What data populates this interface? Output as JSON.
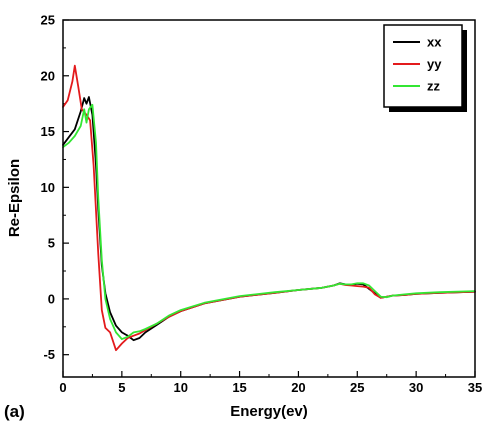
{
  "chart_data": {
    "type": "line",
    "panel_label": "(a)",
    "xlabel": "Energy(ev)",
    "ylabel": "Re-Epsilon",
    "xlim": [
      0,
      35
    ],
    "ylim": [
      -7,
      25
    ],
    "xticks": [
      0,
      5,
      10,
      15,
      20,
      25,
      30,
      35
    ],
    "yticks": [
      -5,
      0,
      5,
      10,
      15,
      20,
      25
    ],
    "legend_position": "top-right",
    "series": [
      {
        "name": "xx",
        "color": "#000000",
        "x": [
          0,
          0.5,
          1.0,
          1.5,
          1.8,
          2.0,
          2.2,
          2.5,
          2.8,
          3.0,
          3.3,
          3.6,
          4.0,
          4.5,
          5.0,
          5.5,
          6.0,
          6.5,
          7.0,
          8.0,
          9.0,
          10.0,
          12.0,
          15.0,
          18.0,
          20.0,
          22.0,
          23.0,
          23.5,
          24.0,
          24.5,
          25.0,
          25.5,
          26.0,
          26.5,
          27.0,
          27.5,
          28.0,
          29.0,
          30.0,
          32.0,
          35.0
        ],
        "y": [
          13.8,
          14.5,
          15.2,
          16.8,
          18.0,
          17.5,
          18.1,
          16.5,
          12.0,
          8.0,
          3.0,
          0.5,
          -1.2,
          -2.4,
          -3.0,
          -3.3,
          -3.7,
          -3.5,
          -3.0,
          -2.3,
          -1.6,
          -1.1,
          -0.4,
          0.2,
          0.55,
          0.8,
          1.0,
          1.2,
          1.4,
          1.3,
          1.25,
          1.35,
          1.3,
          0.9,
          0.5,
          0.1,
          0.2,
          0.3,
          0.35,
          0.45,
          0.55,
          0.65
        ]
      },
      {
        "name": "yy",
        "color": "#e31a1c",
        "x": [
          0,
          0.4,
          0.8,
          1.0,
          1.3,
          1.6,
          2.0,
          2.3,
          2.6,
          3.0,
          3.3,
          3.6,
          4.0,
          4.5,
          5.0,
          5.5,
          6.0,
          6.5,
          7.0,
          8.0,
          9.0,
          10.0,
          12.0,
          15.0,
          18.0,
          20.0,
          22.0,
          23.0,
          23.5,
          24.0,
          24.5,
          25.0,
          25.5,
          26.0,
          26.5,
          27.0,
          27.5,
          28.0,
          29.0,
          30.0,
          32.0,
          35.0
        ],
        "y": [
          17.2,
          17.8,
          19.5,
          20.9,
          19.0,
          17.0,
          16.5,
          16.0,
          12.0,
          4.0,
          -1.0,
          -2.6,
          -3.0,
          -4.6,
          -4.0,
          -3.5,
          -3.3,
          -3.1,
          -2.8,
          -2.2,
          -1.6,
          -1.1,
          -0.4,
          0.2,
          0.55,
          0.8,
          1.0,
          1.2,
          1.35,
          1.25,
          1.2,
          1.15,
          1.1,
          1.0,
          0.4,
          0.1,
          0.2,
          0.3,
          0.35,
          0.45,
          0.55,
          0.65
        ]
      },
      {
        "name": "zz",
        "color": "#33e633",
        "x": [
          0,
          0.5,
          1.0,
          1.5,
          1.8,
          2.0,
          2.2,
          2.5,
          2.8,
          3.0,
          3.3,
          3.6,
          4.0,
          4.5,
          5.0,
          5.5,
          6.0,
          6.5,
          7.0,
          8.0,
          9.0,
          10.0,
          12.0,
          15.0,
          18.0,
          20.0,
          22.0,
          23.0,
          23.5,
          24.0,
          24.5,
          25.0,
          25.5,
          26.0,
          26.5,
          27.0,
          27.5,
          28.0,
          29.0,
          30.0,
          32.0,
          35.0
        ],
        "y": [
          13.6,
          14.0,
          14.6,
          15.5,
          17.0,
          15.8,
          17.0,
          17.4,
          14.0,
          9.0,
          3.5,
          0.0,
          -1.8,
          -3.0,
          -3.6,
          -3.4,
          -3.0,
          -2.9,
          -2.7,
          -2.2,
          -1.5,
          -1.0,
          -0.35,
          0.25,
          0.6,
          0.8,
          1.0,
          1.2,
          1.35,
          1.3,
          1.3,
          1.4,
          1.4,
          1.2,
          0.7,
          0.2,
          0.15,
          0.3,
          0.4,
          0.5,
          0.6,
          0.7
        ]
      }
    ]
  }
}
